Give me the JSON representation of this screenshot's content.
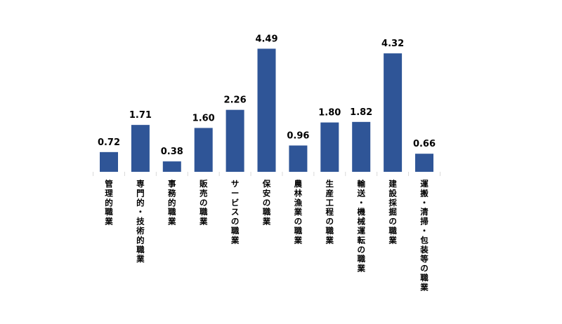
{
  "chart_data": {
    "type": "bar",
    "categories": [
      "管理的職業",
      "専門的・技術的職業",
      "事務的職業",
      "販売の職業",
      "サービスの職業",
      "保安の職業",
      "農林漁業の職業",
      "生産工程の職業",
      "輸送・機械運転の職業",
      "建設採掘の職業",
      "運搬・清掃・包装等の職業"
    ],
    "values": [
      0.72,
      1.71,
      0.38,
      1.6,
      2.26,
      4.49,
      0.96,
      1.8,
      1.82,
      4.32,
      0.66
    ],
    "value_labels": [
      "0.72",
      "1.71",
      "0.38",
      "1.60",
      "2.26",
      "4.49",
      "0.96",
      "1.80",
      "1.82",
      "4.32",
      "0.66"
    ],
    "bar_color": "#2f5597",
    "grid": false,
    "legend": "none"
  }
}
